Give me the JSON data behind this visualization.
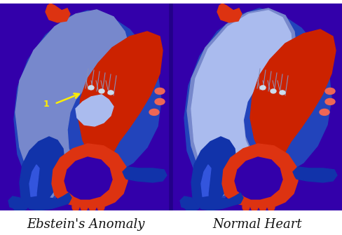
{
  "bg_color": "#3300AA",
  "white_bg": "#FFFFFF",
  "label_left": "Ebstein's Anomaly",
  "label_right": "Normal Heart",
  "label_color": "#111111",
  "label_fontsize": 13,
  "fig_width": 4.89,
  "fig_height": 3.35,
  "dpi": 100,
  "red_dark": "#CC2200",
  "red_mid": "#DD3311",
  "red_light": "#EE6655",
  "red_pale": "#FFAA99",
  "blue_dark": "#1133AA",
  "blue_mid": "#2244BB",
  "blue_bright": "#3355DD",
  "blue_light": "#7788CC",
  "blue_pale": "#99AADD",
  "blue_lavender": "#AABBEE",
  "white": "#FFFFFF",
  "yellow": "#FFEE00",
  "silver": "#CCDDEE"
}
